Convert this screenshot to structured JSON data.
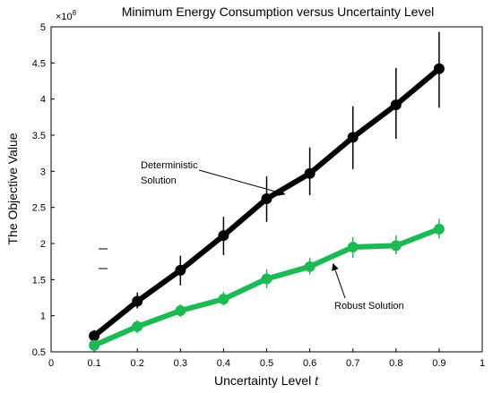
{
  "chart_data": {
    "type": "line",
    "title": "Minimum Energy Consumption versus Uncertainty Level",
    "xlabel": "Uncertainty Level",
    "xlabel_var": "t",
    "ylabel": "The Objective Value",
    "y_exponent_label": "×10",
    "y_exponent_power": "8",
    "xlim": [
      0,
      1
    ],
    "ylim": [
      0.5,
      5
    ],
    "x_ticks": [
      "0",
      "0.1",
      "0.2",
      "0.3",
      "0.4",
      "0.5",
      "0.6",
      "0.7",
      "0.8",
      "0.9",
      "1"
    ],
    "y_ticks": [
      "0.5",
      "1",
      "1.5",
      "2",
      "2.5",
      "3",
      "3.5",
      "4",
      "4.5",
      "5"
    ],
    "x_tick_values": [
      0,
      0.1,
      0.2,
      0.3,
      0.4,
      0.5,
      0.6,
      0.7,
      0.8,
      0.9,
      1
    ],
    "y_tick_values": [
      0.5,
      1,
      1.5,
      2,
      2.5,
      3,
      3.5,
      4,
      4.5,
      5
    ],
    "grid": false,
    "series": [
      {
        "name": "Deterministic Solution",
        "color": "#000000",
        "x": [
          0.1,
          0.2,
          0.3,
          0.4,
          0.5,
          0.6,
          0.7,
          0.8,
          0.9
        ],
        "y": [
          0.72,
          1.2,
          1.63,
          2.11,
          2.62,
          2.97,
          3.47,
          3.92,
          4.42
        ],
        "err_low": [
          0.65,
          1.1,
          1.42,
          1.84,
          2.3,
          2.67,
          3.03,
          3.45,
          3.88
        ],
        "err_high": [
          0.8,
          1.32,
          1.83,
          2.37,
          2.93,
          3.33,
          3.9,
          4.43,
          4.93
        ]
      },
      {
        "name": "Robust Solution",
        "color": "#1db954",
        "x": [
          0.1,
          0.2,
          0.3,
          0.4,
          0.5,
          0.6,
          0.7,
          0.8,
          0.9
        ],
        "y": [
          0.59,
          0.85,
          1.07,
          1.23,
          1.51,
          1.68,
          1.95,
          1.97,
          2.2
        ],
        "err_low": [
          0.54,
          0.76,
          0.98,
          1.14,
          1.38,
          1.57,
          1.8,
          1.85,
          2.07
        ],
        "err_high": [
          0.66,
          0.94,
          1.16,
          1.33,
          1.64,
          1.8,
          2.09,
          2.11,
          2.34
        ]
      }
    ],
    "annotations": [
      {
        "text_lines": [
          "Deterministic",
          "Solution"
        ],
        "target_series": 0,
        "target_x": 0.55
      },
      {
        "text_lines": [
          "Robust Solution"
        ],
        "target_series": 1,
        "target_x": 0.65
      }
    ]
  }
}
